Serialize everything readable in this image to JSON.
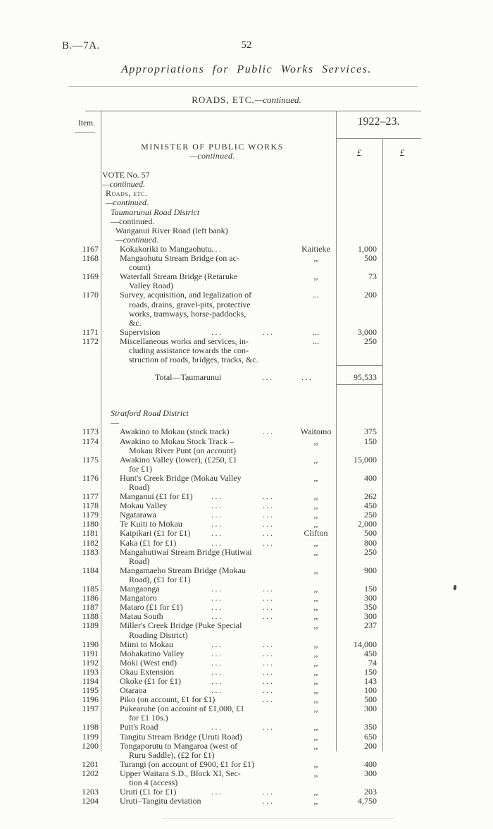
{
  "page": {
    "doc_ref": "B.—7A.",
    "page_number": "52",
    "title": "Appropriations for Public Works Services.",
    "section_caps": "ROADS, ETC.",
    "section_cont": "—continued."
  },
  "table": {
    "item_header": "Item.",
    "year_header": "1922–23.",
    "pound1": "£",
    "pound2": "£",
    "rows": [
      {
        "type": "heading",
        "main": "MINISTER OF PUBLIC WORKS",
        "cont": "—continued."
      },
      {
        "type": "sub",
        "lvl": 0,
        "main": "VOTE No. 57",
        "main_style": "roman",
        "cont": "—continued.",
        "cont_style": "italic"
      },
      {
        "type": "sub",
        "lvl": 1,
        "main": "Roads, etc.",
        "main_style": "smallcaps",
        "cont": "—continued.",
        "cont_style": "italic"
      },
      {
        "type": "sub",
        "lvl": 2,
        "main": "Taumarunui Road District",
        "main_style": "italic",
        "cont": "—continued.",
        "cont_style": "roman"
      },
      {
        "type": "sub",
        "lvl": 3,
        "main": "Wanganui River Road (left bank)",
        "main_style": "roman",
        "cont": "—continued.",
        "cont_style": "italic"
      },
      {
        "type": "item",
        "item": "1167",
        "lines": [
          "Kokakoriki to Mangaohutu"
        ],
        "dots": [
          0
        ],
        "loc": "Kaitieke",
        "amt": "1,000"
      },
      {
        "type": "item",
        "item": "1168",
        "lines": [
          "Mangaohutu Stream Bridge (on ac-",
          "count)"
        ],
        "dots": [],
        "loc": ",,",
        "amt": "500"
      },
      {
        "type": "item",
        "item": "1169",
        "lines": [
          "Waterfall Stream Bridge (Retaruke",
          "Valley Road)"
        ],
        "dots": [],
        "loc": ",,",
        "amt": "73"
      },
      {
        "type": "item",
        "item": "1170",
        "lines": [
          "Survey, acquisition, and legalization of",
          "roads, drains, gravel-pits, protective",
          "works, tramways, horse-paddocks,",
          "&c."
        ],
        "dots": [],
        "loc": "...",
        "amt": "200"
      },
      {
        "type": "item",
        "item": "1171",
        "lines": [
          "Supervision"
        ],
        "dots": [
          0,
          1
        ],
        "loc": "...",
        "amt": "3,000"
      },
      {
        "type": "item",
        "item": "1172",
        "lines": [
          "Miscellaneous works and services, in-",
          "cluding assistance towards the con-",
          "struction of roads, bridges, tracks, &c."
        ],
        "dots": [],
        "loc": "...",
        "amt": "250"
      },
      {
        "type": "total",
        "label": "Total—Taumarunui",
        "amt": "95,533"
      },
      {
        "type": "sub",
        "lvl": 2,
        "main": "Stratford Road District",
        "main_style": "italic",
        "cont": "—",
        "cont_style": "roman"
      },
      {
        "type": "item",
        "item": "1173",
        "lines": [
          "Awakino to Mokau (stock track)"
        ],
        "dots": [
          1
        ],
        "loc": "Waitomo",
        "amt": "375"
      },
      {
        "type": "item",
        "item": "1174",
        "lines": [
          "Awakino to Mokau Stock Track –",
          "Mokau River Punt (on account)"
        ],
        "dots": [],
        "loc": ",,",
        "amt": "150"
      },
      {
        "type": "item",
        "item": "1175",
        "lines": [
          "Awakino Valley (lower), (£250, £1",
          "for £1)"
        ],
        "dots": [],
        "loc": ",,",
        "amt": "15,000"
      },
      {
        "type": "item",
        "item": "1176",
        "lines": [
          "Hunt's Creek Bridge (Mokau Valley",
          "Road)"
        ],
        "dots": [],
        "loc": ",,",
        "amt": "400"
      },
      {
        "type": "item",
        "item": "1177",
        "lines": [
          "Manganui (£1 for £1)"
        ],
        "dots": [
          0,
          1
        ],
        "loc": ",,",
        "amt": "262"
      },
      {
        "type": "item",
        "item": "1178",
        "lines": [
          "Mokau Valley"
        ],
        "dots": [
          0,
          1
        ],
        "loc": ",,",
        "amt": "450"
      },
      {
        "type": "item",
        "item": "1179",
        "lines": [
          "Ngatarawa"
        ],
        "dots": [
          0,
          1
        ],
        "loc": ",,",
        "amt": "250"
      },
      {
        "type": "item",
        "item": "1180",
        "lines": [
          "Te Kuiti to Mokau"
        ],
        "dots": [
          0,
          1
        ],
        "loc": ",,",
        "amt": "2,000"
      },
      {
        "type": "item",
        "item": "1181",
        "lines": [
          "Kaipikari (£1 for £1)"
        ],
        "dots": [
          0,
          1
        ],
        "loc": "Clifton",
        "amt": "500"
      },
      {
        "type": "item",
        "item": "1182",
        "lines": [
          "Kaka (£1 for £1)"
        ],
        "dots": [
          0,
          1
        ],
        "loc": ",,",
        "amt": "800"
      },
      {
        "type": "item",
        "item": "1183",
        "lines": [
          "Mangahutiwai Stream Bridge (Hutiwai",
          "Road)"
        ],
        "dots": [],
        "loc": ",,",
        "amt": "250"
      },
      {
        "type": "item",
        "item": "1184",
        "lines": [
          "Mangamaeho Stream Bridge (Mokau",
          "Road), (£1 for £1)"
        ],
        "dots": [],
        "loc": ",,",
        "amt": "900"
      },
      {
        "type": "item",
        "item": "1185",
        "lines": [
          "Mangaonga"
        ],
        "dots": [
          0,
          1
        ],
        "loc": ",,",
        "amt": "150"
      },
      {
        "type": "item",
        "item": "1186",
        "lines": [
          "Mangatoro"
        ],
        "dots": [
          0,
          1
        ],
        "loc": ",,",
        "amt": "300"
      },
      {
        "type": "item",
        "item": "1187",
        "lines": [
          "Mataro (£1 for £1)"
        ],
        "dots": [
          0,
          1
        ],
        "loc": ",,",
        "amt": "350"
      },
      {
        "type": "item",
        "item": "1188",
        "lines": [
          "Matau South"
        ],
        "dots": [
          0,
          1
        ],
        "loc": ",,",
        "amt": "300"
      },
      {
        "type": "item",
        "item": "1189",
        "lines": [
          "Miller's Creek Bridge (Puke Special",
          "Roading District)"
        ],
        "dots": [],
        "loc": ",,",
        "amt": "237"
      },
      {
        "type": "item",
        "item": "1190",
        "lines": [
          "Mimi to Mokau"
        ],
        "dots": [
          0,
          1
        ],
        "loc": ",,",
        "amt": "14,000"
      },
      {
        "type": "item",
        "item": "1191",
        "lines": [
          "Mohakatino Valley"
        ],
        "dots": [
          0,
          1
        ],
        "loc": ",,",
        "amt": "450"
      },
      {
        "type": "item",
        "item": "1192",
        "lines": [
          "Moki (West end)"
        ],
        "dots": [
          0,
          1
        ],
        "loc": ",,",
        "amt": "74"
      },
      {
        "type": "item",
        "item": "1193",
        "lines": [
          "Okau Extension"
        ],
        "dots": [
          0,
          1
        ],
        "loc": ",,",
        "amt": "150"
      },
      {
        "type": "item",
        "item": "1194",
        "lines": [
          "Okoke (£1 for £1)"
        ],
        "dots": [
          0,
          1
        ],
        "loc": ",,",
        "amt": "143"
      },
      {
        "type": "item",
        "item": "1195",
        "lines": [
          "Otaraoa"
        ],
        "dots": [
          0,
          1
        ],
        "loc": ",,",
        "amt": "100"
      },
      {
        "type": "item",
        "item": "1196",
        "lines": [
          "Piko (on account, £1 for £1)"
        ],
        "dots": [
          1
        ],
        "loc": ",,",
        "amt": "500"
      },
      {
        "type": "item",
        "item": "1197",
        "lines": [
          "Pukearuhe (on account of £1,000, £1",
          "for £1 10s.)"
        ],
        "dots": [],
        "loc": ",,",
        "amt": "300"
      },
      {
        "type": "item",
        "item": "1198",
        "lines": [
          "Putt's Road"
        ],
        "dots": [
          0,
          1
        ],
        "loc": ",,",
        "amt": "350"
      },
      {
        "type": "item",
        "item": "1199",
        "lines": [
          "Tangitu Stream Bridge (Uruti Road)"
        ],
        "dots": [],
        "loc": ",,",
        "amt": "650"
      },
      {
        "type": "item",
        "item": "1200",
        "lines": [
          "Tongaporutu to Mangaroa (west of",
          "Ruru Saddle), (£2 for £1)"
        ],
        "dots": [],
        "loc": ",,",
        "amt": "200"
      },
      {
        "type": "item",
        "item": "1201",
        "lines": [
          "Turangi (on account of £900, £1 for £1)"
        ],
        "dots": [],
        "loc": ",,",
        "amt": "400"
      },
      {
        "type": "item",
        "item": "1202",
        "lines": [
          "Upper Waitara S.D., Block XI, Sec-",
          "tion 4 (access)"
        ],
        "dots": [],
        "loc": ",,",
        "amt": "300"
      },
      {
        "type": "item",
        "item": "1203",
        "lines": [
          "Uruti (£1 for £1)"
        ],
        "dots": [
          0,
          1
        ],
        "loc": ",,",
        "amt": "203"
      },
      {
        "type": "item",
        "item": "1204",
        "lines": [
          "Uruti–Tangitu deviation"
        ],
        "dots": [
          1
        ],
        "loc": ",,",
        "amt": "4,750"
      }
    ]
  }
}
